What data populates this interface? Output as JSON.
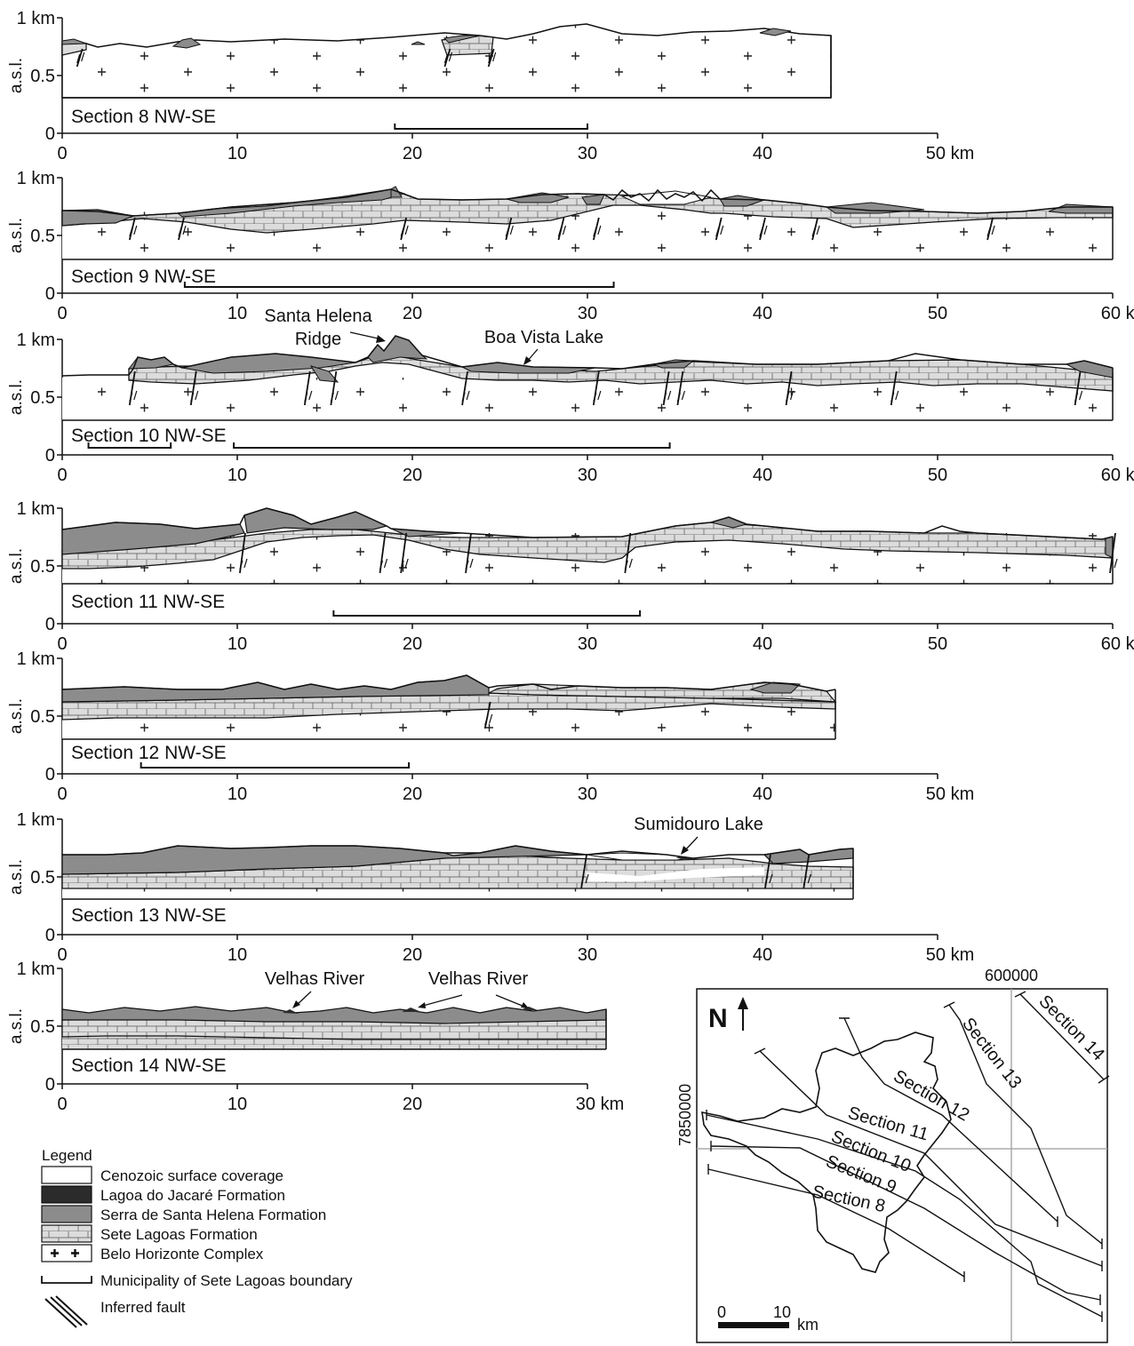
{
  "axes": {
    "vertical_unit": "km",
    "vertical_ticks": [
      "1 km",
      "0.5",
      "0"
    ],
    "vertical_label": "a.s.l."
  },
  "sections": [
    {
      "label": "Section 8 NW-SE",
      "x_ticks": [
        "0",
        "10",
        "20",
        "30",
        "40",
        "50 km"
      ],
      "max_km": 50,
      "length_km": 43.5,
      "boundary_km": [
        [
          19,
          30
        ]
      ],
      "faults_km": [
        1,
        22,
        24.5
      ]
    },
    {
      "label": "Section 9 NW-SE",
      "x_ticks": [
        "0",
        "10",
        "20",
        "30",
        "40",
        "50",
        "60 km"
      ],
      "max_km": 60,
      "length_km": 60,
      "boundary_km": [
        [
          7,
          31.5
        ]
      ],
      "faults_km": [
        4,
        6.8,
        19.5,
        25.5,
        28.5,
        30.5,
        37.5,
        40,
        43,
        53
      ]
    },
    {
      "label": "Section 10 NW-SE",
      "x_ticks": [
        "0",
        "10",
        "20",
        "30",
        "40",
        "50",
        "60 km"
      ],
      "max_km": 60,
      "length_km": 60,
      "boundary_km": [
        [
          1.5,
          6.2
        ],
        [
          9.8,
          34.7
        ]
      ],
      "faults_km": [
        4,
        7.5,
        14,
        15.5,
        23,
        30.5,
        34.5,
        35.3,
        41.5,
        47.5,
        58
      ],
      "annotations": [
        "Santa Helena",
        "Ridge",
        "Boa Vista Lake"
      ]
    },
    {
      "label": "Section 11 NW-SE",
      "x_ticks": [
        "0",
        "10",
        "20",
        "30",
        "40",
        "50",
        "60 km"
      ],
      "max_km": 60,
      "length_km": 60,
      "boundary_km": [
        [
          15.5,
          33
        ]
      ],
      "faults_km": [
        10.3,
        18.3,
        19.5,
        23.2,
        32.3,
        60
      ]
    },
    {
      "label": "Section 12 NW-SE",
      "x_ticks": [
        "0",
        "10",
        "20",
        "30",
        "40",
        "50 km"
      ],
      "max_km": 50,
      "length_km": 44,
      "boundary_km": [
        [
          4.5,
          19.8
        ]
      ],
      "faults_km": [
        24.3
      ]
    },
    {
      "label": "Section 13 NW-SE",
      "x_ticks": [
        "0",
        "10",
        "20",
        "30",
        "40",
        "50 km"
      ],
      "max_km": 50,
      "length_km": 45,
      "boundary_km": [],
      "faults_km": [
        29.8,
        40.3,
        42.5
      ],
      "annotations": [
        "Sumidouro Lake"
      ]
    },
    {
      "label": "Section 14 NW-SE",
      "x_ticks": [
        "0",
        "10",
        "20",
        "30 km"
      ],
      "max_km": 30,
      "length_km": 31,
      "boundary_km": [],
      "faults_km": [],
      "annotations": [
        "Velhas River",
        "Velhas River"
      ]
    }
  ],
  "legend": {
    "title": "Legend",
    "items": [
      {
        "label": "Cenozoic surface coverage",
        "fill": "#ffffff"
      },
      {
        "label": "Lagoa do Jacaré Formation",
        "fill": "#2b2b2b"
      },
      {
        "label": "Serra de Santa Helena Formation",
        "fill": "#8c8c8c"
      },
      {
        "label": "Sete Lagoas Formation",
        "fill": "#dcdcdc"
      },
      {
        "label": "Belo Horizonte Complex",
        "fill": "#ffffff"
      }
    ],
    "boundary_label": "Municipality of Sete Lagoas boundary",
    "fault_label": "Inferred fault"
  },
  "map": {
    "north_label": "N",
    "easting_label": "600000",
    "northing_label": "7850000",
    "scale_labels": [
      "0",
      "10",
      "km"
    ],
    "section_labels": [
      "Section 8",
      "Section 9",
      "Section 10",
      "Section 11",
      "Section 12",
      "Section 13",
      "Section 14"
    ]
  },
  "colors": {
    "cenozoic": "#ffffff",
    "lagoa": "#2b2b2b",
    "serra": "#8c8c8c",
    "sete": "#dcdcdc",
    "line": "#111111",
    "map_grid": "#aaaaaa"
  }
}
